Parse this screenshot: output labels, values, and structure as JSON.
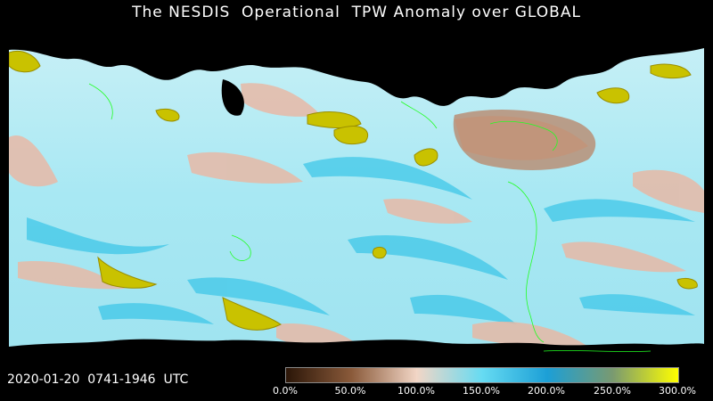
{
  "title": "The NESDIS  Operational  TPW Anomaly over GLOBAL",
  "timestamp": "2020-01-20  0741-1946  UTC",
  "colorbar": {
    "ticks": [
      "0.0%",
      "50.0%",
      "100.0%",
      "150.0%",
      "200.0%",
      "250.0%",
      "300.0%"
    ],
    "colors": [
      "#2b1608",
      "#8a5a3a",
      "#f2d6c6",
      "#66dbf2",
      "#1c9fd6",
      "#7a9a70",
      "#ffff00"
    ]
  },
  "map": {
    "ocean_color": "#aee9f3",
    "land_mask_color": "#000000",
    "coastline_color": "#22ff22",
    "anomaly_low_color": "#e8b8a8",
    "anomaly_high_color": "#c8c400"
  }
}
